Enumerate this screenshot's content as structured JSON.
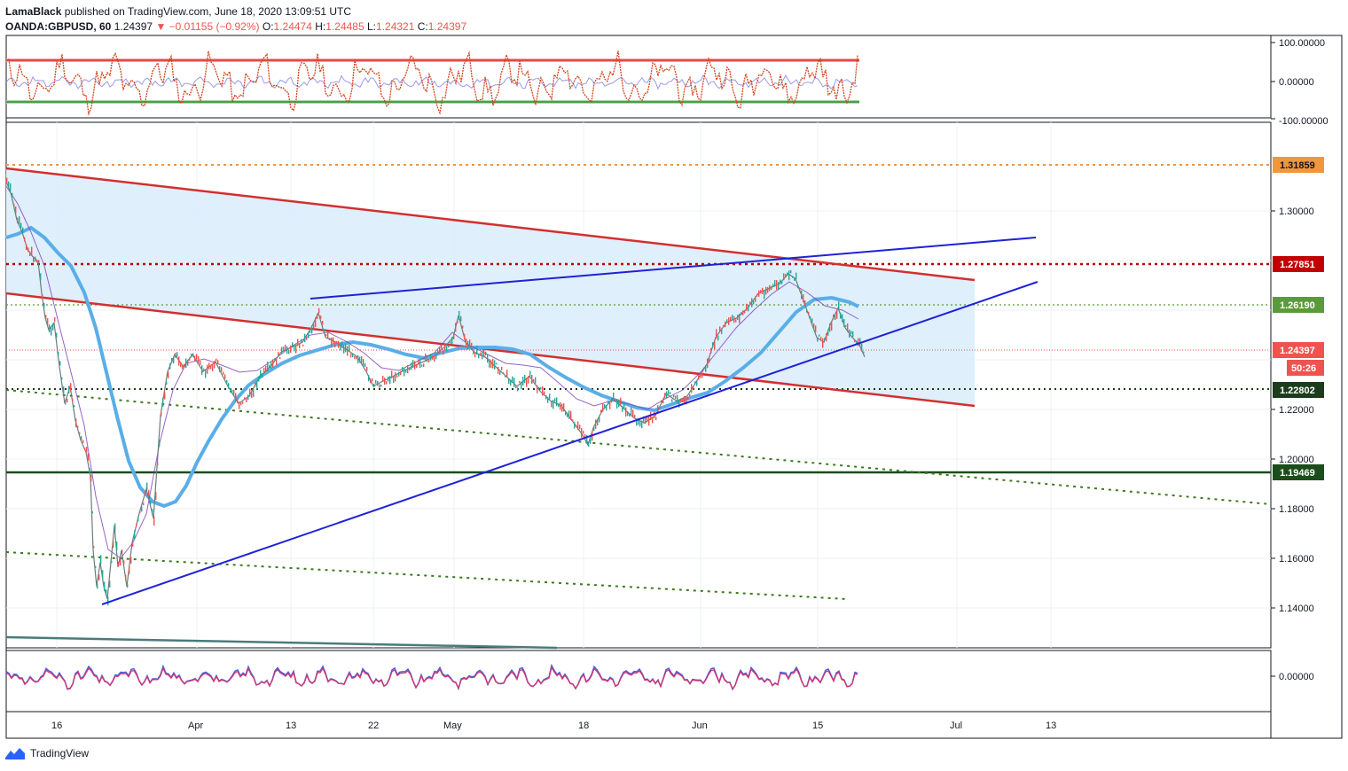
{
  "header": {
    "author": "LamaBlack",
    "published": "published on TradingView.com, June 18, 2020 13:09:51 UTC",
    "symbol": "OANDA:GBPUSD, 60",
    "last": "1.24397",
    "change": "▼ −0.01155 (−0.92%)",
    "ohlc": {
      "o_label": "O:",
      "o": "1.24474",
      "h_label": "H:",
      "h": "1.24485",
      "l_label": "L:",
      "l": "1.24321",
      "c_label": "C:",
      "c": "1.24397"
    }
  },
  "footer": {
    "brand": "TradingView"
  },
  "colors": {
    "red_line": "#d32f2f",
    "blue_line": "#1e22d6",
    "ma_blue": "#5aaee8",
    "channel_fill": "#dcedfc",
    "green_dotted": "#3c7a1e",
    "dark_green": "#1b4d1b",
    "orange": "#f0963c",
    "maroon": "#c00000",
    "candle_up": "#26a69a",
    "candle_down": "#ef5350"
  },
  "chart_data": {
    "type": "line",
    "symbol": "OANDA:GBPUSD",
    "interval": "60",
    "date_ticks": [
      "16",
      "Apr",
      "13",
      "22",
      "May",
      "18",
      "Jun",
      "15",
      "Jul",
      "13"
    ],
    "price_ticks": [
      "1.30000",
      "1.22000",
      "1.20000",
      "1.18000",
      "1.16000",
      "1.14000"
    ],
    "ylim": [
      1.125,
      1.34
    ],
    "price_series_approx": [
      [
        0,
        1.316
      ],
      [
        6,
        1.31
      ],
      [
        12,
        1.3
      ],
      [
        18,
        1.295
      ],
      [
        24,
        1.288
      ],
      [
        30,
        1.285
      ],
      [
        36,
        1.283
      ],
      [
        40,
        1.27
      ],
      [
        44,
        1.26
      ],
      [
        48,
        1.255
      ],
      [
        54,
        1.258
      ],
      [
        60,
        1.24
      ],
      [
        66,
        1.225
      ],
      [
        72,
        1.232
      ],
      [
        78,
        1.218
      ],
      [
        84,
        1.21
      ],
      [
        90,
        1.205
      ],
      [
        95,
        1.195
      ],
      [
        98,
        1.165
      ],
      [
        102,
        1.15
      ],
      [
        106,
        1.16
      ],
      [
        110,
        1.15
      ],
      [
        114,
        1.145
      ],
      [
        118,
        1.16
      ],
      [
        122,
        1.175
      ],
      [
        126,
        1.158
      ],
      [
        130,
        1.165
      ],
      [
        136,
        1.15
      ],
      [
        142,
        1.168
      ],
      [
        150,
        1.18
      ],
      [
        158,
        1.19
      ],
      [
        166,
        1.178
      ],
      [
        174,
        1.22
      ],
      [
        182,
        1.238
      ],
      [
        190,
        1.245
      ],
      [
        200,
        1.24
      ],
      [
        210,
        1.245
      ],
      [
        222,
        1.238
      ],
      [
        236,
        1.242
      ],
      [
        250,
        1.232
      ],
      [
        262,
        1.225
      ],
      [
        274,
        1.228
      ],
      [
        286,
        1.236
      ],
      [
        298,
        1.24
      ],
      [
        310,
        1.246
      ],
      [
        322,
        1.248
      ],
      [
        334,
        1.25
      ],
      [
        344,
        1.256
      ],
      [
        352,
        1.262
      ],
      [
        360,
        1.252
      ],
      [
        372,
        1.25
      ],
      [
        384,
        1.247
      ],
      [
        396,
        1.244
      ],
      [
        406,
        1.238
      ],
      [
        414,
        1.232
      ],
      [
        424,
        1.234
      ],
      [
        436,
        1.236
      ],
      [
        446,
        1.238
      ],
      [
        458,
        1.24
      ],
      [
        470,
        1.242
      ],
      [
        482,
        1.244
      ],
      [
        494,
        1.248
      ],
      [
        504,
        1.252
      ],
      [
        510,
        1.261
      ],
      [
        518,
        1.25
      ],
      [
        528,
        1.246
      ],
      [
        540,
        1.244
      ],
      [
        552,
        1.24
      ],
      [
        564,
        1.236
      ],
      [
        576,
        1.232
      ],
      [
        590,
        1.236
      ],
      [
        602,
        1.23
      ],
      [
        614,
        1.226
      ],
      [
        626,
        1.224
      ],
      [
        638,
        1.218
      ],
      [
        650,
        1.212
      ],
      [
        656,
        1.208
      ],
      [
        662,
        1.215
      ],
      [
        672,
        1.222
      ],
      [
        684,
        1.227
      ],
      [
        696,
        1.223
      ],
      [
        708,
        1.219
      ],
      [
        720,
        1.217
      ],
      [
        732,
        1.22
      ],
      [
        744,
        1.229
      ],
      [
        756,
        1.226
      ],
      [
        768,
        1.228
      ],
      [
        780,
        1.235
      ],
      [
        790,
        1.241
      ],
      [
        800,
        1.252
      ],
      [
        812,
        1.258
      ],
      [
        824,
        1.26
      ],
      [
        836,
        1.264
      ],
      [
        848,
        1.27
      ],
      [
        860,
        1.272
      ],
      [
        872,
        1.274
      ],
      [
        882,
        1.278
      ],
      [
        890,
        1.276
      ],
      [
        898,
        1.268
      ],
      [
        906,
        1.26
      ],
      [
        914,
        1.252
      ],
      [
        922,
        1.25
      ],
      [
        930,
        1.258
      ],
      [
        938,
        1.264
      ],
      [
        946,
        1.256
      ],
      [
        954,
        1.252
      ],
      [
        962,
        1.249
      ],
      [
        968,
        1.244
      ]
    ],
    "indicator_top": {
      "ylim": [
        -100,
        100
      ],
      "ticks": [
        "100.00000",
        "0.00000",
        "-100.00000"
      ],
      "upper_band": 50,
      "lower_band": -50
    },
    "indicator_bottom": {
      "ticks": [
        "0.00000"
      ]
    },
    "horizontal_levels": [
      {
        "price": "1.31859",
        "style": "dotted",
        "color": "#f0963c"
      },
      {
        "price": "1.27851",
        "style": "dotted",
        "color": "#c00000"
      },
      {
        "price": "1.26190",
        "style": "dotted",
        "color": "#5a9a3a"
      },
      {
        "price": "1.24397",
        "style": "dotted",
        "color": "#ef5350",
        "countdown": "50:26"
      },
      {
        "price": "1.22802",
        "style": "dotted",
        "color": "#1b3d1b"
      },
      {
        "price": "1.19469",
        "style": "solid",
        "color": "#1b4d1b"
      }
    ]
  }
}
